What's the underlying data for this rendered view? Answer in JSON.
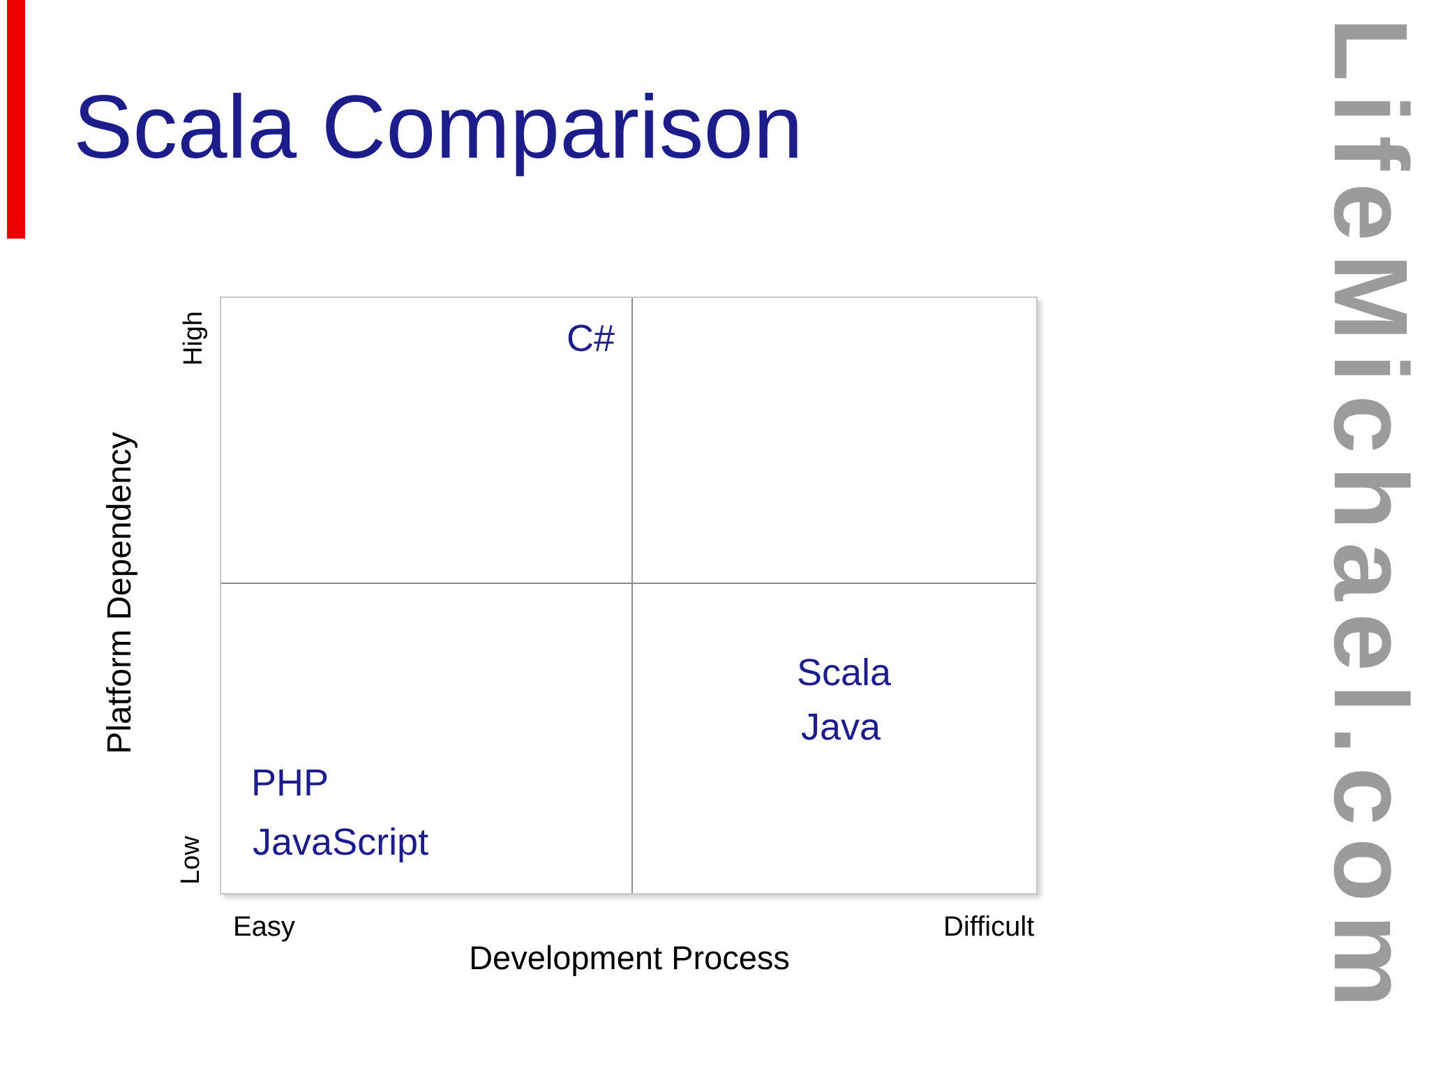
{
  "slide": {
    "title": "Scala Comparison",
    "background_color": "#ffffff"
  },
  "watermark": {
    "text": "LifeMichael.com",
    "color": "#9b9b9b"
  },
  "decor": {
    "red_bar_color": "#ee0000"
  },
  "chart": {
    "y_axis": {
      "title": "Platform Dependency",
      "high_label": "High",
      "low_label": "Low"
    },
    "x_axis": {
      "title": "Development Process",
      "easy_label": "Easy",
      "difficult_label": "Difficult"
    },
    "points": [
      {
        "label": "C#",
        "quadrant": "high-dependency / easy"
      },
      {
        "label": "Scala",
        "quadrant": "low-dependency / difficult"
      },
      {
        "label": "Java",
        "quadrant": "low-dependency / difficult"
      },
      {
        "label": "PHP",
        "quadrant": "low-dependency / easy"
      },
      {
        "label": "JavaScript",
        "quadrant": "low-dependency / easy"
      }
    ],
    "colors": {
      "point_label": "#1c1c8a",
      "title_text": "#1c1c8a",
      "box_border": "#c7c7c7",
      "grid_line": "#8a8a8a",
      "axis_text": "#000000"
    }
  },
  "chart_data": {
    "type": "scatter",
    "title": "Scala Comparison",
    "xlabel": "Development Process",
    "ylabel": "Platform Dependency",
    "x_range_labels": [
      "Easy",
      "Difficult"
    ],
    "y_range_labels": [
      "Low",
      "High"
    ],
    "grid": "2x2 quadrant lines",
    "legend": "none",
    "points": [
      {
        "label": "C#",
        "x": 0.45,
        "y": 0.93
      },
      {
        "label": "Scala",
        "x": 0.75,
        "y": 0.37
      },
      {
        "label": "Java",
        "x": 0.75,
        "y": 0.28
      },
      {
        "label": "PHP",
        "x": 0.08,
        "y": 0.18
      },
      {
        "label": "JavaScript",
        "x": 0.13,
        "y": 0.08
      }
    ]
  }
}
